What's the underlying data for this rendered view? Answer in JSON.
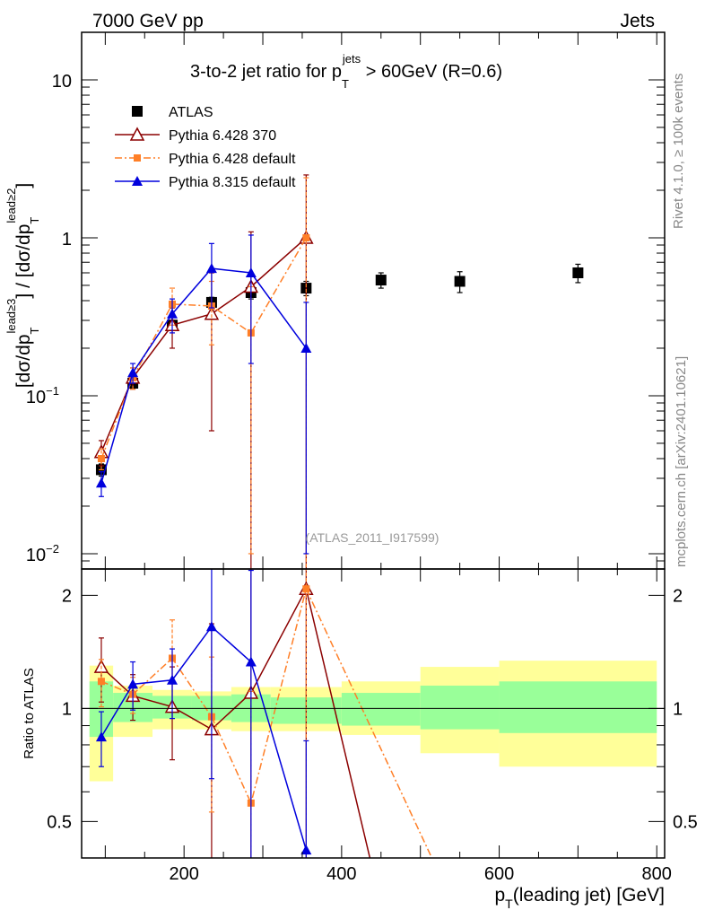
{
  "header": {
    "left": "7000 GeV pp",
    "right": "Jets"
  },
  "side_labels": {
    "rivet": "Rivet 4.1.0, ≥ 100k events",
    "mcplots": "mcplots.cern.ch [arXiv:2401.10621]"
  },
  "watermark": "(ATLAS_2011_I917599)",
  "colors": {
    "atlas": "#000000",
    "p6_370": "#8b0000",
    "p6_def": "#ff7f27",
    "p8_def": "#0000dd",
    "band_inner": "#99ff99",
    "band_outer": "#ffff99"
  },
  "chart_data": [
    {
      "panel": "main",
      "type": "scatter",
      "title_parts": {
        "prefix": "3-to-2 jet ratio for p",
        "sub": "T",
        "sup": "jets",
        "suffix": " > 60GeV (R=0.6)"
      },
      "ylabel_parts": {
        "a": "[dσ/dp",
        "a_sub": "T",
        "a_sup": "lead≥3",
        "b": "] / [dσ/dp",
        "b_sub": "T",
        "b_sup": "lead≥2",
        "c": "]"
      },
      "yscale": "log",
      "xlim": [
        70,
        810
      ],
      "ylim": [
        0.008,
        20
      ],
      "y_ticks": [
        {
          "v": 0.01,
          "base": "10",
          "exp": "−2"
        },
        {
          "v": 0.1,
          "base": "10",
          "exp": "−1"
        },
        {
          "v": 1,
          "base": "1",
          "exp": ""
        },
        {
          "v": 10,
          "base": "10",
          "exp": ""
        }
      ],
      "series": [
        {
          "name": "ATLAS",
          "key": "atlas",
          "marker": "square",
          "line": "none",
          "x": [
            95,
            135,
            185,
            235,
            285,
            355,
            450,
            550,
            700
          ],
          "y": [
            0.034,
            0.12,
            0.28,
            0.39,
            0.45,
            0.48,
            0.54,
            0.53,
            0.6
          ],
          "err": [
            0.003,
            0.008,
            0.02,
            0.03,
            0.04,
            0.05,
            0.06,
            0.08,
            0.08
          ]
        },
        {
          "name": "Pythia 6.428 370",
          "key": "p6_370",
          "marker": "open-triangle",
          "line": "solid",
          "x": [
            95,
            135,
            185,
            235,
            285,
            355
          ],
          "y": [
            0.044,
            0.13,
            0.28,
            0.33,
            0.49,
            1.0
          ],
          "err": [
            0.008,
            0.02,
            0.08,
            0.27,
            0.6,
            1.5
          ]
        },
        {
          "name": "Pythia 6.428 default",
          "key": "p6_def",
          "marker": "small-square",
          "line": "dashdot",
          "x": [
            95,
            135,
            185,
            235,
            285,
            355
          ],
          "y": [
            0.04,
            0.13,
            0.38,
            0.37,
            0.25,
            1.0
          ],
          "err": [
            0.006,
            0.02,
            0.1,
            0.16,
            0.24,
            1.4
          ]
        },
        {
          "name": "Pythia 8.315 default",
          "key": "p8_def",
          "marker": "filled-triangle",
          "line": "solid",
          "x": [
            95,
            135,
            185,
            235,
            285,
            355
          ],
          "y": [
            0.028,
            0.14,
            0.33,
            0.64,
            0.6,
            0.2
          ],
          "err": [
            0.005,
            0.02,
            0.08,
            0.28,
            0.44,
            0.19
          ]
        }
      ]
    },
    {
      "panel": "ratio",
      "type": "line",
      "ylabel": "Ratio to ATLAS",
      "xlabel_parts": {
        "a": "p",
        "sub": "T",
        "b": "(leading jet) [GeV]"
      },
      "yscale": "log",
      "ylim": [
        0.4,
        2.35
      ],
      "y_ticks": [
        0.5,
        1,
        2
      ],
      "x_ticks": [
        200,
        400,
        600,
        800
      ],
      "bands": [
        {
          "x_lo": 80,
          "x_hi": 110,
          "inner": [
            0.84,
            1.18
          ],
          "outer": [
            0.64,
            1.3
          ]
        },
        {
          "x_lo": 110,
          "x_hi": 160,
          "inner": [
            0.92,
            1.1
          ],
          "outer": [
            0.84,
            1.15
          ]
        },
        {
          "x_lo": 160,
          "x_hi": 210,
          "inner": [
            0.94,
            1.08
          ],
          "outer": [
            0.88,
            1.12
          ]
        },
        {
          "x_lo": 210,
          "x_hi": 260,
          "inner": [
            0.93,
            1.08
          ],
          "outer": [
            0.88,
            1.11
          ]
        },
        {
          "x_lo": 260,
          "x_hi": 310,
          "inner": [
            0.92,
            1.09
          ],
          "outer": [
            0.87,
            1.14
          ]
        },
        {
          "x_lo": 310,
          "x_hi": 400,
          "inner": [
            0.91,
            1.07
          ],
          "outer": [
            0.87,
            1.14
          ]
        },
        {
          "x_lo": 400,
          "x_hi": 500,
          "inner": [
            0.9,
            1.1
          ],
          "outer": [
            0.85,
            1.18
          ]
        },
        {
          "x_lo": 500,
          "x_hi": 600,
          "inner": [
            0.88,
            1.15
          ],
          "outer": [
            0.76,
            1.29
          ]
        },
        {
          "x_lo": 600,
          "x_hi": 800,
          "inner": [
            0.86,
            1.18
          ],
          "outer": [
            0.7,
            1.34
          ]
        }
      ],
      "series": [
        {
          "name": "Pythia 6.428 370",
          "key": "p6_370",
          "marker": "open-triangle",
          "line": "solid",
          "x": [
            95,
            135,
            185,
            235,
            285,
            355,
            450
          ],
          "y": [
            1.29,
            1.08,
            1.01,
            0.88,
            1.1,
            2.08,
            0.3
          ],
          "err": [
            0.25,
            0.15,
            0.28,
            0.8,
            1.3,
            3.0,
            0
          ]
        },
        {
          "name": "Pythia 6.428 default",
          "key": "p6_def",
          "marker": "small-square",
          "line": "dashdot",
          "x": [
            95,
            135,
            185,
            235,
            285,
            355,
            560
          ],
          "y": [
            1.18,
            1.09,
            1.36,
            0.95,
            0.56,
            2.08,
            0.25
          ],
          "err": [
            0.17,
            0.12,
            0.36,
            0.42,
            0.55,
            2.9,
            0
          ]
        },
        {
          "name": "Pythia 8.315 default",
          "key": "p8_def",
          "marker": "filled-triangle",
          "line": "solid",
          "x": [
            95,
            135,
            185,
            235,
            285,
            355
          ],
          "y": [
            0.84,
            1.16,
            1.19,
            1.65,
            1.33,
            0.42
          ],
          "err": [
            0.14,
            0.17,
            0.25,
            1.0,
            1.0,
            0.4
          ]
        }
      ]
    }
  ]
}
